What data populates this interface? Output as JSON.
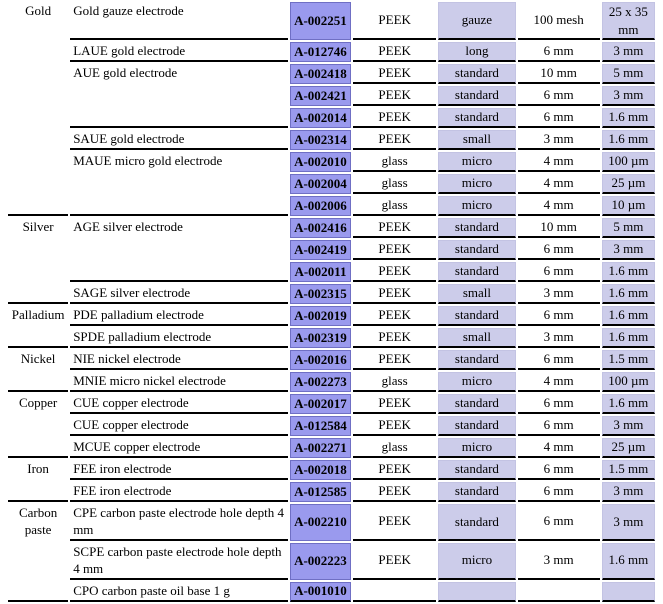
{
  "colors": {
    "code_fill": "#9a9aee",
    "code_border": "#6f6fc4",
    "light_fill": "#ccccea",
    "light_border": "#c3c3e3",
    "rule": "#000000"
  },
  "table": {
    "materials": [
      {
        "name": "Gold",
        "products": [
          {
            "name": "Gold gauze electrode",
            "variants": [
              {
                "code": "A-002251",
                "body": "PEEK",
                "type": "gauze",
                "dim1": "100 mesh",
                "dim2": "25 x 35 mm"
              }
            ]
          },
          {
            "name": "LAUE gold electrode",
            "variants": [
              {
                "code": "A-012746",
                "body": "PEEK",
                "type": "long",
                "dim1": "6 mm",
                "dim2": "3 mm"
              }
            ]
          },
          {
            "name": "AUE gold electrode",
            "variants": [
              {
                "code": "A-002418",
                "body": "PEEK",
                "type": "standard",
                "dim1": "10 mm",
                "dim2": "5 mm"
              },
              {
                "code": "A-002421",
                "body": "PEEK",
                "type": "standard",
                "dim1": "6 mm",
                "dim2": "3 mm"
              },
              {
                "code": "A-002014",
                "body": "PEEK",
                "type": "standard",
                "dim1": "6 mm",
                "dim2": "1.6 mm"
              }
            ]
          },
          {
            "name": "SAUE gold electrode",
            "variants": [
              {
                "code": "A-002314",
                "body": "PEEK",
                "type": "small",
                "dim1": "3 mm",
                "dim2": "1.6 mm"
              }
            ]
          },
          {
            "name": "MAUE micro gold electrode",
            "variants": [
              {
                "code": "A-002010",
                "body": "glass",
                "type": "micro",
                "dim1": "4 mm",
                "dim2": "100 µm"
              },
              {
                "code": "A-002004",
                "body": "glass",
                "type": "micro",
                "dim1": "4 mm",
                "dim2": "25 µm"
              },
              {
                "code": "A-002006",
                "body": "glass",
                "type": "micro",
                "dim1": "4 mm",
                "dim2": "10 µm"
              }
            ]
          }
        ]
      },
      {
        "name": "Silver",
        "products": [
          {
            "name": "AGE silver electrode",
            "variants": [
              {
                "code": "A-002416",
                "body": "PEEK",
                "type": "standard",
                "dim1": "10 mm",
                "dim2": "5 mm"
              },
              {
                "code": "A-002419",
                "body": "PEEK",
                "type": "standard",
                "dim1": "6 mm",
                "dim2": "3 mm"
              },
              {
                "code": "A-002011",
                "body": "PEEK",
                "type": "standard",
                "dim1": "6 mm",
                "dim2": "1.6 mm"
              }
            ]
          },
          {
            "name": "SAGE silver electrode",
            "variants": [
              {
                "code": "A-002315",
                "body": "PEEK",
                "type": "small",
                "dim1": "3 mm",
                "dim2": "1.6 mm"
              }
            ]
          }
        ]
      },
      {
        "name": "Palladium",
        "products": [
          {
            "name": "PDE palladium electrode",
            "variants": [
              {
                "code": "A-002019",
                "body": "PEEK",
                "type": "standard",
                "dim1": "6 mm",
                "dim2": "1.6 mm"
              }
            ]
          },
          {
            "name": "SPDE palladium electrode",
            "variants": [
              {
                "code": "A-002319",
                "body": "PEEK",
                "type": "small",
                "dim1": "3 mm",
                "dim2": "1.6 mm"
              }
            ]
          }
        ]
      },
      {
        "name": "Nickel",
        "products": [
          {
            "name": "NIE nickel electrode",
            "variants": [
              {
                "code": "A-002016",
                "body": "PEEK",
                "type": "standard",
                "dim1": "6 mm",
                "dim2": "1.5 mm"
              }
            ]
          },
          {
            "name": "MNIE micro nickel electrode",
            "variants": [
              {
                "code": "A-002273",
                "body": "glass",
                "type": "micro",
                "dim1": "4 mm",
                "dim2": "100 µm"
              }
            ]
          }
        ]
      },
      {
        "name": "Copper",
        "products": [
          {
            "name": "CUE copper electrode",
            "variants": [
              {
                "code": "A-002017",
                "body": "PEEK",
                "type": "standard",
                "dim1": "6 mm",
                "dim2": "1.6 mm"
              }
            ]
          },
          {
            "name": "CUE copper electrode",
            "variants": [
              {
                "code": "A-012584",
                "body": "PEEK",
                "type": "standard",
                "dim1": "6 mm",
                "dim2": "3 mm"
              }
            ]
          },
          {
            "name": "MCUE copper electrode",
            "variants": [
              {
                "code": "A-002271",
                "body": "glass",
                "type": "micro",
                "dim1": "4 mm",
                "dim2": "25 µm"
              }
            ]
          }
        ]
      },
      {
        "name": "Iron",
        "products": [
          {
            "name": "FEE iron electrode",
            "variants": [
              {
                "code": "A-002018",
                "body": "PEEK",
                "type": "standard",
                "dim1": "6 mm",
                "dim2": "1.5 mm"
              }
            ]
          },
          {
            "name": "FEE iron electrode",
            "variants": [
              {
                "code": "A-012585",
                "body": "PEEK",
                "type": "standard",
                "dim1": "6 mm",
                "dim2": "3 mm"
              }
            ]
          }
        ]
      },
      {
        "name": "Carbon paste",
        "products": [
          {
            "name": "CPE carbon paste electrode hole depth 4 mm",
            "variants": [
              {
                "code": "A-002210",
                "body": "PEEK",
                "type": "standard",
                "dim1": "6 mm",
                "dim2": "3 mm"
              }
            ]
          },
          {
            "name": "SCPE carbon paste electrode hole depth 4 mm",
            "variants": [
              {
                "code": "A-002223",
                "body": "PEEK",
                "type": "micro",
                "dim1": "3 mm",
                "dim2": "1.6 mm"
              }
            ]
          },
          {
            "name": "CPO carbon paste oil base 1 g",
            "variants": [
              {
                "code": "A-001010",
                "body": "",
                "type": "",
                "dim1": "",
                "dim2": ""
              }
            ]
          }
        ]
      }
    ]
  }
}
